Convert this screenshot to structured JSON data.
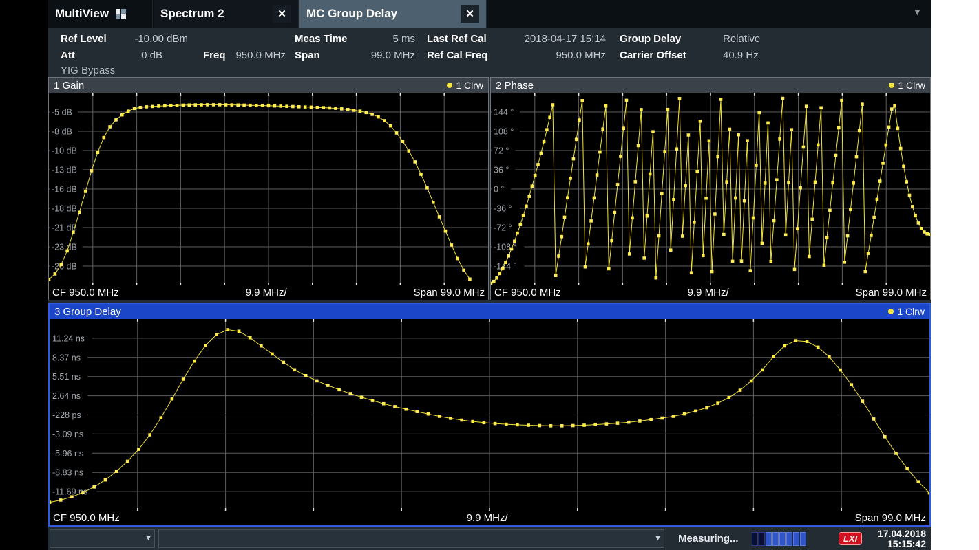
{
  "tab_bar": {
    "tabs": [
      {
        "label": "MultiView"
      },
      {
        "label": "Spectrum 2"
      },
      {
        "label": "MC Group Delay"
      }
    ],
    "close_glyph": "✕",
    "overflow_glyph": "▼"
  },
  "header": {
    "ref_level": {
      "label": "Ref Level",
      "value": "-10.00 dBm"
    },
    "att": {
      "label": "Att",
      "value": "0 dB"
    },
    "freq": {
      "label": "Freq",
      "value": "950.0 MHz"
    },
    "meas_time": {
      "label": "Meas Time",
      "value": "5 ms"
    },
    "span": {
      "label": "Span",
      "value": "99.0 MHz"
    },
    "last_ref_cal": {
      "label": "Last Ref Cal",
      "value": "2018-04-17 15:14"
    },
    "ref_cal_freq": {
      "label": "Ref Cal Freq",
      "value": "950.0 MHz"
    },
    "group_delay": {
      "label": "Group Delay",
      "value": "Relative"
    },
    "carrier_offset": {
      "label": "Carrier Offset",
      "value": "40.9 Hz"
    },
    "yig_bypass": "YIG Bypass"
  },
  "chart_data": [
    {
      "type": "line",
      "title": "1 Gain",
      "trace_label": "1 Clrw",
      "trace_color": "#f2e23a",
      "marker_color": "#ffec50",
      "x_axis": {
        "cf": "CF 950.0 MHz",
        "per_div": "9.9 MHz/",
        "span": "Span 99.0 MHz"
      },
      "y_ticks": [
        "-5 dB",
        "-8 dB",
        "-10 dB",
        "-13 dB",
        "-16 dB",
        "-18 dB",
        "-21 dB",
        "-23 dB",
        "-26 dB"
      ],
      "y_range": [
        -28.6,
        -2.6
      ],
      "x_range_mhz": [
        900.5,
        999.5
      ],
      "grid_divisions": 10,
      "model": {
        "kind": "spline",
        "points_n": 73,
        "control_points": [
          [
            0.0,
            -27.8
          ],
          [
            0.02,
            -26.6
          ],
          [
            0.04,
            -24.2
          ],
          [
            0.06,
            -20.6
          ],
          [
            0.08,
            -16.6
          ],
          [
            0.1,
            -12.6
          ],
          [
            0.12,
            -9.3
          ],
          [
            0.14,
            -7.1
          ],
          [
            0.16,
            -5.9
          ],
          [
            0.18,
            -5.1
          ],
          [
            0.2,
            -4.65
          ],
          [
            0.25,
            -4.4
          ],
          [
            0.3,
            -4.28
          ],
          [
            0.35,
            -4.22
          ],
          [
            0.4,
            -4.22
          ],
          [
            0.45,
            -4.28
          ],
          [
            0.5,
            -4.35
          ],
          [
            0.55,
            -4.45
          ],
          [
            0.6,
            -4.55
          ],
          [
            0.64,
            -4.65
          ],
          [
            0.68,
            -4.85
          ],
          [
            0.71,
            -5.1
          ],
          [
            0.74,
            -5.6
          ],
          [
            0.76,
            -6.2
          ],
          [
            0.78,
            -7.2
          ],
          [
            0.8,
            -8.7
          ],
          [
            0.82,
            -10.5
          ],
          [
            0.84,
            -12.7
          ],
          [
            0.86,
            -15.3
          ],
          [
            0.88,
            -18.1
          ],
          [
            0.9,
            -20.9
          ],
          [
            0.92,
            -23.6
          ],
          [
            0.94,
            -26.1
          ],
          [
            0.96,
            -27.9
          ],
          [
            0.975,
            -29.3
          ],
          [
            1.0,
            -31.0
          ]
        ]
      }
    },
    {
      "type": "line",
      "title": "2 Phase",
      "trace_label": "1 Clrw",
      "trace_color": "#f2e23a",
      "marker_color": "#ffec50",
      "x_axis": {
        "cf": "CF 950.0 MHz",
        "per_div": "9.9 MHz/",
        "span": "Span 99.0 MHz"
      },
      "y_ticks": [
        "144 °",
        "108 °",
        "72 °",
        "36 °",
        "0 °",
        "-36 °",
        "-72 °",
        "-108 °",
        "-144 °"
      ],
      "y_range": [
        -180,
        180
      ],
      "x_range_mhz": [
        900.5,
        999.5
      ],
      "grid_divisions": 10,
      "model": {
        "kind": "wrapped_phase",
        "points_n": 150,
        "start": -176,
        "first_rise": 348,
        "first_pow": 1.5,
        "ramp_lo": -176,
        "ramp_hi": 176,
        "drops": [
          0.145,
          0.21,
          0.265,
          0.31,
          0.345,
          0.375,
          0.405,
          0.43,
          0.455,
          0.48,
          0.502,
          0.524,
          0.548,
          0.568,
          0.589,
          0.613,
          0.634,
          0.665,
          0.689,
          0.72,
          0.754,
          0.8,
          0.848,
          0.918
        ],
        "tail_base": -85,
        "tail_rise": 250,
        "tail_pow": 2.2
      }
    },
    {
      "type": "line",
      "title": "3 Group Delay",
      "trace_label": "1 Clrw",
      "trace_color": "#f2e23a",
      "marker_color": "#ffec50",
      "x_axis": {
        "cf": "CF 950.0 MHz",
        "per_div": "9.9 MHz/",
        "span": "Span 99.0 MHz"
      },
      "y_ticks": [
        "11.24 ns",
        "8.37 ns",
        "5.51 ns",
        "2.64 ns",
        "-228 ps",
        "-3.09 ns",
        "-5.96 ns",
        "-8.83 ns",
        "-11.69 ns"
      ],
      "y_range": [
        -14.56,
        14.11
      ],
      "x_range_mhz": [
        900.5,
        999.5
      ],
      "grid_divisions": 10,
      "model": {
        "kind": "spline",
        "points_n": 80,
        "control_points": [
          [
            0.0,
            -13.3
          ],
          [
            0.02,
            -12.7
          ],
          [
            0.045,
            -11.4
          ],
          [
            0.07,
            -9.3
          ],
          [
            0.095,
            -6.3
          ],
          [
            0.115,
            -3.0
          ],
          [
            0.135,
            1.2
          ],
          [
            0.155,
            5.8
          ],
          [
            0.175,
            9.8
          ],
          [
            0.19,
            11.8
          ],
          [
            0.205,
            12.55
          ],
          [
            0.22,
            12.0
          ],
          [
            0.235,
            10.6
          ],
          [
            0.255,
            8.7
          ],
          [
            0.275,
            6.8
          ],
          [
            0.3,
            5.1
          ],
          [
            0.33,
            3.5
          ],
          [
            0.36,
            2.2
          ],
          [
            0.39,
            1.1
          ],
          [
            0.42,
            0.2
          ],
          [
            0.45,
            -0.6
          ],
          [
            0.48,
            -1.2
          ],
          [
            0.51,
            -1.55
          ],
          [
            0.54,
            -1.75
          ],
          [
            0.57,
            -1.85
          ],
          [
            0.6,
            -1.8
          ],
          [
            0.63,
            -1.6
          ],
          [
            0.66,
            -1.3
          ],
          [
            0.69,
            -0.8
          ],
          [
            0.71,
            -0.4
          ],
          [
            0.73,
            0.2
          ],
          [
            0.75,
            1.0
          ],
          [
            0.77,
            2.2
          ],
          [
            0.79,
            4.0
          ],
          [
            0.81,
            6.5
          ],
          [
            0.825,
            8.8
          ],
          [
            0.84,
            10.5
          ],
          [
            0.855,
            10.9
          ],
          [
            0.87,
            10.2
          ],
          [
            0.885,
            8.6
          ],
          [
            0.9,
            6.3
          ],
          [
            0.915,
            3.6
          ],
          [
            0.93,
            0.6
          ],
          [
            0.945,
            -2.6
          ],
          [
            0.96,
            -5.6
          ],
          [
            0.975,
            -8.3
          ],
          [
            0.99,
            -10.6
          ],
          [
            1.0,
            -11.9
          ]
        ]
      }
    }
  ],
  "status_bar": {
    "measuring_label": "Measuring...",
    "progress_segments": 8,
    "progress_dark_count": 2,
    "lxi_label": "LXI",
    "date": "17.04.2018",
    "time": "15:15:42",
    "dropdown_glyph": "▼"
  }
}
